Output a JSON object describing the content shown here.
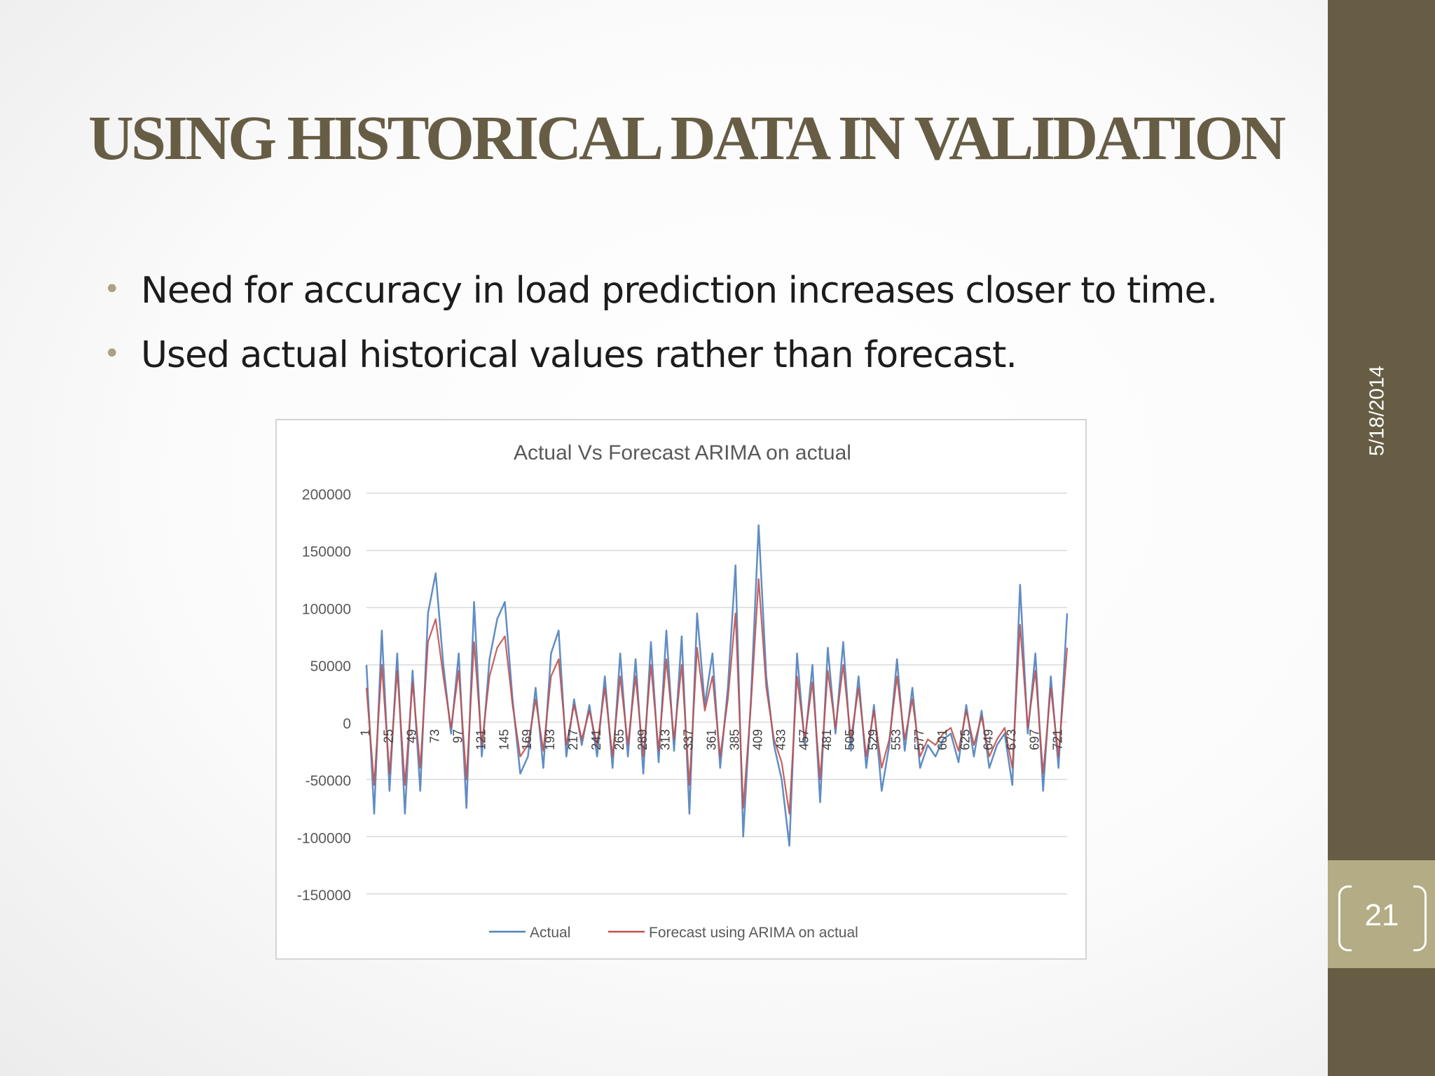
{
  "slide": {
    "title": "USING HISTORICAL DATA IN VALIDATION",
    "bullets": [
      "Need for accuracy in load prediction increases closer to time.",
      "Used actual historical values rather than forecast."
    ],
    "date": "5/18/2014",
    "page_number": "21",
    "colors": {
      "accent": "#675d45",
      "accent_light": "#b3ac85"
    }
  },
  "chart_data": {
    "type": "line",
    "title": "Actual Vs Forecast ARIMA on actual",
    "xlabel": "",
    "ylabel": "",
    "ylim": [
      -150000,
      200000
    ],
    "yticks": [
      200000,
      150000,
      100000,
      50000,
      0,
      -50000,
      -100000,
      -150000
    ],
    "ytick_labels": [
      "200000",
      "150000",
      "100000",
      "50000",
      "0",
      "-50000",
      "-100000",
      "-150000"
    ],
    "x_range": [
      1,
      730
    ],
    "xticks": [
      1,
      25,
      49,
      73,
      97,
      121,
      145,
      169,
      193,
      217,
      241,
      265,
      289,
      313,
      337,
      361,
      385,
      409,
      433,
      457,
      481,
      505,
      529,
      553,
      577,
      601,
      625,
      649,
      673,
      697,
      721
    ],
    "xtick_labels": [
      "1",
      "25",
      "49",
      "73",
      "97",
      "121",
      "145",
      "169",
      "193",
      "217",
      "241",
      "265",
      "289",
      "313",
      "337",
      "361",
      "385",
      "409",
      "433",
      "457",
      "481",
      "505",
      "529",
      "553",
      "577",
      "601",
      "625",
      "649",
      "673",
      "697",
      "721"
    ],
    "grid": true,
    "legend": "bottom",
    "series": [
      {
        "name": "Actual",
        "color": "#4f81bd",
        "x": [
          1,
          9,
          17,
          25,
          33,
          41,
          49,
          57,
          65,
          73,
          81,
          89,
          97,
          105,
          113,
          121,
          129,
          137,
          145,
          153,
          161,
          169,
          177,
          185,
          193,
          201,
          209,
          217,
          225,
          233,
          241,
          249,
          257,
          265,
          273,
          281,
          289,
          297,
          305,
          313,
          321,
          329,
          337,
          345,
          353,
          361,
          369,
          377,
          385,
          393,
          401,
          409,
          417,
          425,
          433,
          441,
          449,
          457,
          465,
          473,
          481,
          489,
          497,
          505,
          513,
          521,
          529,
          537,
          545,
          553,
          561,
          569,
          577,
          585,
          593,
          601,
          609,
          617,
          625,
          633,
          641,
          649,
          657,
          665,
          673,
          681,
          689,
          697,
          705,
          713,
          721,
          730
        ],
        "values": [
          50000,
          -80000,
          80000,
          -60000,
          60000,
          -80000,
          45000,
          -60000,
          95000,
          130000,
          50000,
          -10000,
          60000,
          -75000,
          105000,
          -30000,
          55000,
          90000,
          105000,
          20000,
          -45000,
          -30000,
          30000,
          -40000,
          60000,
          80000,
          -30000,
          20000,
          -20000,
          15000,
          -30000,
          40000,
          -40000,
          60000,
          -30000,
          55000,
          -45000,
          70000,
          -35000,
          80000,
          -25000,
          75000,
          -80000,
          95000,
          15000,
          60000,
          -40000,
          30000,
          137000,
          -100000,
          20000,
          172000,
          40000,
          -20000,
          -50000,
          -108000,
          60000,
          -20000,
          50000,
          -70000,
          65000,
          -10000,
          70000,
          -25000,
          40000,
          -40000,
          15000,
          -60000,
          -20000,
          55000,
          -25000,
          30000,
          -40000,
          -20000,
          -30000,
          -15000,
          -10000,
          -35000,
          15000,
          -30000,
          10000,
          -40000,
          -20000,
          -10000,
          -55000,
          120000,
          -10000,
          60000,
          -60000,
          40000,
          -40000,
          95000
        ]
      },
      {
        "name": "Forecast using ARIMA on actual",
        "color": "#c0504d",
        "x": [
          1,
          9,
          17,
          25,
          33,
          41,
          49,
          57,
          65,
          73,
          81,
          89,
          97,
          105,
          113,
          121,
          129,
          137,
          145,
          153,
          161,
          169,
          177,
          185,
          193,
          201,
          209,
          217,
          225,
          233,
          241,
          249,
          257,
          265,
          273,
          281,
          289,
          297,
          305,
          313,
          321,
          329,
          337,
          345,
          353,
          361,
          369,
          377,
          385,
          393,
          401,
          409,
          417,
          425,
          433,
          441,
          449,
          457,
          465,
          473,
          481,
          489,
          497,
          505,
          513,
          521,
          529,
          537,
          545,
          553,
          561,
          569,
          577,
          585,
          593,
          601,
          609,
          617,
          625,
          633,
          641,
          649,
          657,
          665,
          673,
          681,
          689,
          697,
          705,
          713,
          721,
          730
        ],
        "values": [
          30000,
          -55000,
          50000,
          -45000,
          45000,
          -55000,
          35000,
          -40000,
          70000,
          90000,
          40000,
          -5000,
          45000,
          -50000,
          70000,
          -20000,
          40000,
          65000,
          75000,
          15000,
          -30000,
          -20000,
          20000,
          -25000,
          40000,
          55000,
          -20000,
          15000,
          -15000,
          10000,
          -20000,
          30000,
          -30000,
          40000,
          -20000,
          40000,
          -30000,
          50000,
          -25000,
          55000,
          -15000,
          50000,
          -55000,
          65000,
          10000,
          40000,
          -30000,
          20000,
          95000,
          -75000,
          15000,
          125000,
          30000,
          -15000,
          -35000,
          -80000,
          40000,
          -15000,
          35000,
          -50000,
          45000,
          -5000,
          50000,
          -15000,
          30000,
          -30000,
          10000,
          -40000,
          -15000,
          40000,
          -15000,
          20000,
          -30000,
          -15000,
          -20000,
          -10000,
          -5000,
          -25000,
          10000,
          -20000,
          5000,
          -30000,
          -15000,
          -5000,
          -40000,
          85000,
          -5000,
          45000,
          -45000,
          30000,
          -30000,
          65000
        ]
      }
    ]
  }
}
